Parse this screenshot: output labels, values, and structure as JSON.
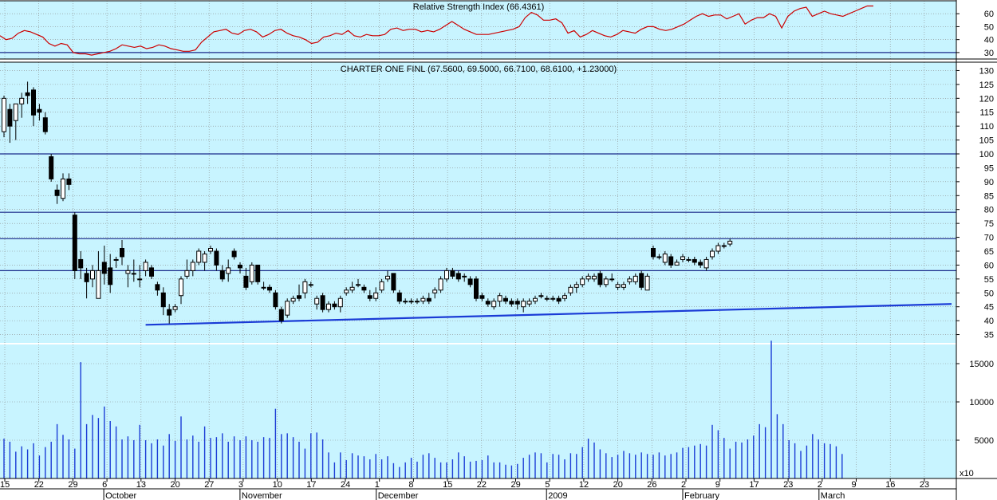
{
  "colors": {
    "background": "#c8f4ff",
    "grid": "#8a8a8a",
    "rsi_line": "#cc0000",
    "trend_line": "#1a3bd6",
    "ref_line": "#1a2a8a",
    "candle": "#000000",
    "volume": "#1a3bd6"
  },
  "chart_data": [
    {
      "type": "line",
      "title": "Relative Strength Index (66.4361)",
      "yticks": [
        30,
        40,
        50,
        60
      ],
      "ylim": [
        25,
        70
      ],
      "reference_line": 30,
      "series": [
        {
          "values": [
            43,
            40,
            41,
            45,
            47,
            46,
            44,
            42,
            37,
            35,
            37,
            36,
            30,
            29,
            29,
            28,
            29,
            30,
            31,
            33,
            36,
            35,
            34,
            35,
            33,
            34,
            36,
            35,
            33,
            32,
            31,
            31,
            32,
            38,
            42,
            46,
            47,
            48,
            45,
            44,
            47,
            48,
            46,
            42,
            44,
            47,
            48,
            45,
            43,
            42,
            40,
            37,
            38,
            42,
            43,
            45,
            44,
            47,
            43,
            42,
            44,
            43,
            43,
            44,
            48,
            49,
            47,
            48,
            48,
            46,
            47,
            46,
            48,
            51,
            54,
            51,
            48,
            46,
            44,
            44,
            44,
            45,
            46,
            47,
            48,
            50,
            57,
            61,
            59,
            55,
            55,
            56,
            53,
            45,
            47,
            42,
            44,
            47,
            45,
            43,
            42,
            44,
            47,
            46,
            45,
            48,
            50,
            50,
            48,
            47,
            48,
            50,
            52,
            55,
            58,
            60,
            58,
            59,
            59,
            56,
            58,
            60,
            52,
            55,
            57,
            57,
            60,
            58,
            49,
            58,
            62,
            64,
            65,
            58,
            60,
            62,
            60,
            59,
            58,
            60,
            62,
            64,
            66,
            66
          ]
        }
      ]
    },
    {
      "type": "candlestick",
      "title": "CHARTER ONE FINL (67.5600, 69.5000, 66.7100, 68.6100, +1.23000)",
      "yticks": [
        35,
        40,
        45,
        50,
        55,
        60,
        65,
        70,
        75,
        80,
        85,
        90,
        95,
        100,
        105,
        110,
        115,
        120,
        125,
        130
      ],
      "ylim": [
        32,
        133
      ],
      "horizontal_lines": [
        100,
        79,
        69.5,
        58
      ],
      "trend_line": {
        "from": [
          24,
          38.5
        ],
        "to": [
          145,
          46
        ]
      },
      "candles": [
        {
          "o": 108,
          "h": 121,
          "l": 106,
          "c": 120
        },
        {
          "o": 116,
          "h": 118,
          "l": 104,
          "c": 110
        },
        {
          "o": 112,
          "h": 117,
          "l": 105,
          "c": 118
        },
        {
          "o": 118,
          "h": 122,
          "l": 113,
          "c": 120
        },
        {
          "o": 122,
          "h": 126,
          "l": 118,
          "c": 121
        },
        {
          "o": 123,
          "h": 124,
          "l": 110,
          "c": 114
        },
        {
          "o": 116,
          "h": 118,
          "l": 112,
          "c": 115
        },
        {
          "o": 113,
          "h": 115,
          "l": 107,
          "c": 108
        },
        {
          "o": 99,
          "h": 100,
          "l": 90,
          "c": 91
        },
        {
          "o": 87,
          "h": 89,
          "l": 82,
          "c": 85
        },
        {
          "o": 84,
          "h": 93,
          "l": 83,
          "c": 91
        },
        {
          "o": 91,
          "h": 93,
          "l": 87,
          "c": 89
        },
        {
          "o": 78,
          "h": 79,
          "l": 55,
          "c": 58
        },
        {
          "o": 62,
          "h": 65,
          "l": 55,
          "c": 59
        },
        {
          "o": 57,
          "h": 59,
          "l": 48,
          "c": 54
        },
        {
          "o": 55,
          "h": 60,
          "l": 52,
          "c": 58
        },
        {
          "o": 48,
          "h": 65,
          "l": 48,
          "c": 58
        },
        {
          "o": 61,
          "h": 67,
          "l": 53,
          "c": 57
        },
        {
          "o": 59,
          "h": 64,
          "l": 50,
          "c": 53
        },
        {
          "o": 62,
          "h": 63,
          "l": 59,
          "c": 62
        },
        {
          "o": 66,
          "h": 69,
          "l": 60,
          "c": 63
        },
        {
          "o": 57,
          "h": 60,
          "l": 52,
          "c": 58
        },
        {
          "o": 57,
          "h": 62,
          "l": 54,
          "c": 57
        },
        {
          "o": 55,
          "h": 60,
          "l": 52,
          "c": 55
        },
        {
          "o": 58,
          "h": 62,
          "l": 56,
          "c": 61
        },
        {
          "o": 59,
          "h": 60,
          "l": 55,
          "c": 56
        },
        {
          "o": 53,
          "h": 54,
          "l": 49,
          "c": 51
        },
        {
          "o": 50,
          "h": 52,
          "l": 42,
          "c": 45
        },
        {
          "o": 44,
          "h": 46,
          "l": 39,
          "c": 42
        },
        {
          "o": 44,
          "h": 46,
          "l": 43,
          "c": 45
        },
        {
          "o": 49,
          "h": 56,
          "l": 46,
          "c": 55
        },
        {
          "o": 56,
          "h": 62,
          "l": 55,
          "c": 58
        },
        {
          "o": 58,
          "h": 62,
          "l": 56,
          "c": 61
        },
        {
          "o": 61,
          "h": 66,
          "l": 60,
          "c": 65
        },
        {
          "o": 61,
          "h": 65,
          "l": 58,
          "c": 64
        },
        {
          "o": 65,
          "h": 67,
          "l": 64,
          "c": 66
        },
        {
          "o": 65,
          "h": 66,
          "l": 58,
          "c": 60
        },
        {
          "o": 58,
          "h": 60,
          "l": 54,
          "c": 55
        },
        {
          "o": 57,
          "h": 62,
          "l": 54,
          "c": 59
        },
        {
          "o": 65,
          "h": 66,
          "l": 62,
          "c": 63
        },
        {
          "o": 60,
          "h": 61,
          "l": 57,
          "c": 59
        },
        {
          "o": 56,
          "h": 59,
          "l": 51,
          "c": 52
        },
        {
          "o": 54,
          "h": 61,
          "l": 53,
          "c": 60
        },
        {
          "o": 60,
          "h": 60,
          "l": 53,
          "c": 54
        },
        {
          "o": 52,
          "h": 54,
          "l": 51,
          "c": 52
        },
        {
          "o": 52,
          "h": 53,
          "l": 50,
          "c": 51
        },
        {
          "o": 50,
          "h": 51,
          "l": 44,
          "c": 45
        },
        {
          "o": 44,
          "h": 45,
          "l": 39,
          "c": 40
        },
        {
          "o": 42,
          "h": 48,
          "l": 41,
          "c": 47
        },
        {
          "o": 47,
          "h": 49,
          "l": 46,
          "c": 48
        },
        {
          "o": 49,
          "h": 53,
          "l": 47,
          "c": 48
        },
        {
          "o": 50,
          "h": 55,
          "l": 48,
          "c": 54
        },
        {
          "o": 53,
          "h": 54,
          "l": 52,
          "c": 53
        },
        {
          "o": 46,
          "h": 49,
          "l": 44,
          "c": 48
        },
        {
          "o": 49,
          "h": 50,
          "l": 43,
          "c": 44
        },
        {
          "o": 44,
          "h": 47,
          "l": 43,
          "c": 46
        },
        {
          "o": 46,
          "h": 47,
          "l": 44,
          "c": 45
        },
        {
          "o": 45,
          "h": 49,
          "l": 43,
          "c": 48
        },
        {
          "o": 50,
          "h": 52,
          "l": 49,
          "c": 51
        },
        {
          "o": 51,
          "h": 54,
          "l": 50,
          "c": 52
        },
        {
          "o": 53,
          "h": 55,
          "l": 52,
          "c": 53
        },
        {
          "o": 52,
          "h": 53,
          "l": 50,
          "c": 51
        },
        {
          "o": 49,
          "h": 51,
          "l": 47,
          "c": 48
        },
        {
          "o": 48,
          "h": 52,
          "l": 47,
          "c": 50
        },
        {
          "o": 51,
          "h": 55,
          "l": 50,
          "c": 54
        },
        {
          "o": 55,
          "h": 58,
          "l": 54,
          "c": 56
        },
        {
          "o": 57,
          "h": 57,
          "l": 50,
          "c": 51
        },
        {
          "o": 50,
          "h": 51,
          "l": 46,
          "c": 47
        },
        {
          "o": 47,
          "h": 48,
          "l": 46,
          "c": 47
        },
        {
          "o": 47,
          "h": 48,
          "l": 46,
          "c": 47
        },
        {
          "o": 47,
          "h": 48,
          "l": 46,
          "c": 47
        },
        {
          "o": 47,
          "h": 49,
          "l": 46,
          "c": 48
        },
        {
          "o": 48,
          "h": 50,
          "l": 46,
          "c": 47
        },
        {
          "o": 50,
          "h": 52,
          "l": 48,
          "c": 51
        },
        {
          "o": 51,
          "h": 56,
          "l": 50,
          "c": 55
        },
        {
          "o": 55,
          "h": 59,
          "l": 54,
          "c": 58
        },
        {
          "o": 58,
          "h": 59,
          "l": 55,
          "c": 56
        },
        {
          "o": 57,
          "h": 58,
          "l": 54,
          "c": 55
        },
        {
          "o": 56,
          "h": 57,
          "l": 54,
          "c": 56
        },
        {
          "o": 55,
          "h": 56,
          "l": 52,
          "c": 53
        },
        {
          "o": 55,
          "h": 56,
          "l": 47,
          "c": 48
        },
        {
          "o": 49,
          "h": 50,
          "l": 47,
          "c": 48
        },
        {
          "o": 47,
          "h": 48,
          "l": 45,
          "c": 46
        },
        {
          "o": 45,
          "h": 48,
          "l": 44,
          "c": 47
        },
        {
          "o": 47,
          "h": 50,
          "l": 45,
          "c": 49
        },
        {
          "o": 48,
          "h": 49,
          "l": 46,
          "c": 47
        },
        {
          "o": 47,
          "h": 48,
          "l": 45,
          "c": 46
        },
        {
          "o": 47,
          "h": 48,
          "l": 44,
          "c": 46
        },
        {
          "o": 45,
          "h": 48,
          "l": 43,
          "c": 47
        },
        {
          "o": 46,
          "h": 48,
          "l": 45,
          "c": 47
        },
        {
          "o": 47,
          "h": 49,
          "l": 46,
          "c": 48
        },
        {
          "o": 49,
          "h": 50,
          "l": 48,
          "c": 49
        },
        {
          "o": 48,
          "h": 49,
          "l": 47,
          "c": 48
        },
        {
          "o": 48,
          "h": 49,
          "l": 47,
          "c": 48
        },
        {
          "o": 48,
          "h": 49,
          "l": 46,
          "c": 47
        },
        {
          "o": 48,
          "h": 50,
          "l": 47,
          "c": 49
        },
        {
          "o": 50,
          "h": 53,
          "l": 49,
          "c": 52
        },
        {
          "o": 52,
          "h": 54,
          "l": 50,
          "c": 53
        },
        {
          "o": 53,
          "h": 56,
          "l": 52,
          "c": 55
        },
        {
          "o": 55,
          "h": 57,
          "l": 54,
          "c": 56
        },
        {
          "o": 55,
          "h": 57,
          "l": 54,
          "c": 56
        },
        {
          "o": 57,
          "h": 58,
          "l": 52,
          "c": 53
        },
        {
          "o": 53,
          "h": 56,
          "l": 52,
          "c": 55
        },
        {
          "o": 55,
          "h": 57,
          "l": 54,
          "c": 55
        },
        {
          "o": 52,
          "h": 54,
          "l": 51,
          "c": 53
        },
        {
          "o": 52,
          "h": 54,
          "l": 51,
          "c": 53
        },
        {
          "o": 54,
          "h": 56,
          "l": 53,
          "c": 55
        },
        {
          "o": 54,
          "h": 57,
          "l": 53,
          "c": 56
        },
        {
          "o": 57,
          "h": 58,
          "l": 51,
          "c": 52
        },
        {
          "o": 51,
          "h": 57,
          "l": 51,
          "c": 56
        },
        {
          "o": 66,
          "h": 67,
          "l": 62,
          "c": 63
        },
        {
          "o": 63,
          "h": 64,
          "l": 62,
          "c": 63
        },
        {
          "o": 61,
          "h": 65,
          "l": 60,
          "c": 64
        },
        {
          "o": 63,
          "h": 64,
          "l": 59,
          "c": 60
        },
        {
          "o": 60,
          "h": 62,
          "l": 60,
          "c": 61
        },
        {
          "o": 62,
          "h": 64,
          "l": 61,
          "c": 63
        },
        {
          "o": 62,
          "h": 63,
          "l": 61,
          "c": 62
        },
        {
          "o": 62,
          "h": 63,
          "l": 60,
          "c": 61
        },
        {
          "o": 61,
          "h": 62,
          "l": 59,
          "c": 60
        },
        {
          "o": 59,
          "h": 63,
          "l": 58,
          "c": 62
        },
        {
          "o": 63,
          "h": 66,
          "l": 62,
          "c": 65
        },
        {
          "o": 65,
          "h": 68,
          "l": 64,
          "c": 67
        },
        {
          "o": 67,
          "h": 68,
          "l": 66,
          "c": 67
        },
        {
          "o": 67.56,
          "h": 69.5,
          "l": 66.71,
          "c": 68.61
        }
      ]
    },
    {
      "type": "bar",
      "title": "",
      "yticks": [
        5000,
        10000,
        15000
      ],
      "ylim": [
        0,
        17500
      ],
      "scale_label": "x10",
      "values": [
        5200,
        4800,
        3500,
        4200,
        3800,
        4600,
        3000,
        4100,
        4800,
        7100,
        5700,
        5100,
        3900,
        15200,
        7100,
        8300,
        7900,
        9400,
        7500,
        6800,
        5100,
        5500,
        5000,
        7000,
        5000,
        4600,
        5100,
        4300,
        5800,
        4900,
        8100,
        5100,
        5600,
        4800,
        6800,
        5300,
        5400,
        5900,
        4800,
        5500,
        5000,
        5500,
        5000,
        4800,
        5400,
        5300,
        9100,
        5800,
        5900,
        5400,
        4800,
        3900,
        5900,
        6000,
        5100,
        3400,
        2100,
        3400,
        2400,
        3300,
        3000,
        2900,
        2500,
        3200,
        2500,
        2900,
        2000,
        1500,
        2100,
        2700,
        2200,
        3100,
        3300,
        2700,
        2100,
        2100,
        2500,
        3400,
        2900,
        2200,
        2300,
        2400,
        3000,
        2100,
        2100,
        1800,
        1700,
        1900,
        2700,
        3100,
        3400,
        3300,
        2100,
        3200,
        3100,
        2500,
        3300,
        3200,
        4100,
        5200,
        4700,
        3800,
        3300,
        2800,
        3100,
        3600,
        3300,
        3100,
        3400,
        3200,
        3100,
        3400,
        3000,
        3200,
        3400,
        4000,
        4100,
        4300,
        4500,
        4300,
        7000,
        6300,
        5300,
        3900,
        4800,
        4700,
        5100,
        5600,
        7100,
        6700,
        18000,
        8400,
        7100,
        5000,
        4600,
        3600,
        4300,
        5800,
        5100,
        4600,
        4500,
        4200,
        3200
      ]
    }
  ],
  "x_axis": {
    "day_labels": [
      "15",
      "22",
      "29",
      "6",
      "13",
      "20",
      "27",
      "3",
      "10",
      "17",
      "24",
      "1",
      "8",
      "15",
      "22",
      "29",
      "5",
      "12",
      "20",
      "26",
      "2",
      "9",
      "17",
      "23",
      "2",
      "9",
      "16",
      "23"
    ],
    "month_labels": [
      "October",
      "November",
      "December",
      "2009",
      "February",
      "March"
    ]
  }
}
